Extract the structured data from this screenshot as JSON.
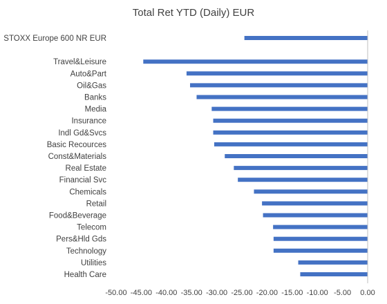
{
  "chart_data": {
    "type": "bar",
    "orientation": "horizontal",
    "title": "Total Ret YTD (Daily) EUR",
    "xlabel": "",
    "ylabel": "",
    "xlim": [
      -50,
      0
    ],
    "x_ticks": [
      "-50.00",
      "-45.00",
      "-40.00",
      "-35.00",
      "-30.00",
      "-25.00",
      "-20.00",
      "-15.00",
      "-10.00",
      "-5.00",
      "0.00"
    ],
    "categories": [
      "STOXX Europe 600 NR EUR",
      "",
      "Travel&Leisure",
      "Auto&Part",
      "Oil&Gas",
      "Banks",
      "Media",
      "Insurance",
      "Indl Gd&Svcs",
      "Basic Recources",
      "Const&Materials",
      "Real Estate",
      "Financial Svc",
      "Chemicals",
      "Retail",
      "Food&Beverage",
      "Telecom",
      "Pers&Hld Gds",
      "Technology",
      "Utilities",
      "Health Care"
    ],
    "values": [
      -24.5,
      null,
      -44.6,
      -36.0,
      -35.3,
      -34.0,
      -31.0,
      -30.7,
      -30.7,
      -30.5,
      -28.4,
      -26.6,
      -25.8,
      -22.6,
      -21.0,
      -20.8,
      -18.8,
      -18.7,
      -18.7,
      -13.8,
      -13.4
    ],
    "color": "#4472c4",
    "grid": false,
    "legend": "none"
  }
}
